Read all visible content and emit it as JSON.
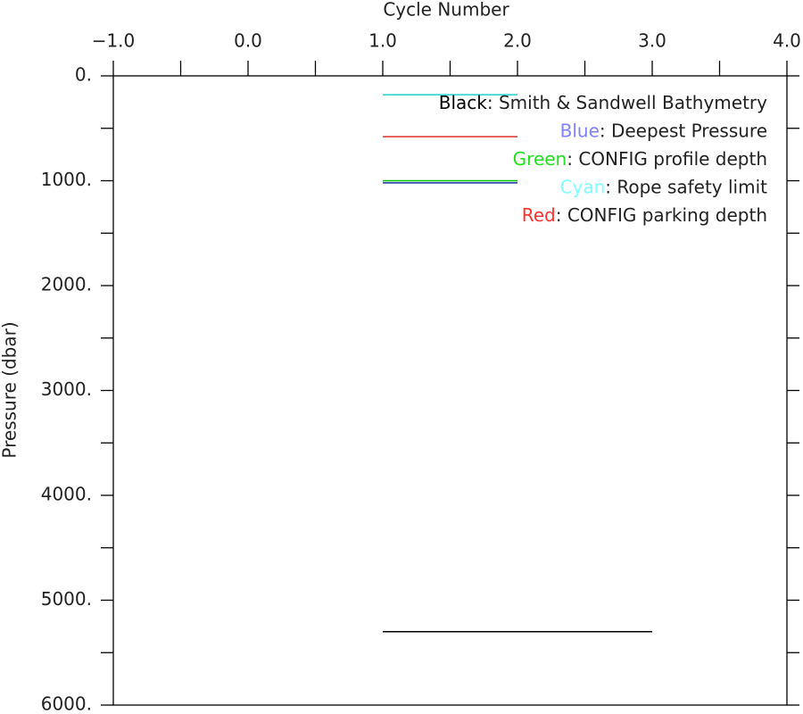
{
  "chart_data": {
    "type": "line",
    "x_label": "Cycle Number",
    "y_label": "Pressure (dbar)",
    "xlim": [
      -1,
      4
    ],
    "xticks": [
      {
        "value": -1,
        "label": "−1.0"
      },
      {
        "value": 0,
        "label": "0.0"
      },
      {
        "value": 1,
        "label": "1.0"
      },
      {
        "value": 2,
        "label": "2.0"
      },
      {
        "value": 3,
        "label": "3.0"
      },
      {
        "value": 4,
        "label": "4.0"
      }
    ],
    "xminorticks": [
      -0.5,
      0.5,
      1.5,
      2.5,
      3.5
    ],
    "ylim": [
      0,
      6000
    ],
    "y_inverted": true,
    "yticks": [
      {
        "value": 0,
        "label": "0."
      },
      {
        "value": 1000,
        "label": "1000."
      },
      {
        "value": 2000,
        "label": "2000."
      },
      {
        "value": 3000,
        "label": "3000."
      },
      {
        "value": 4000,
        "label": "4000."
      },
      {
        "value": 5000,
        "label": "5000."
      },
      {
        "value": 6000,
        "label": "6000."
      }
    ],
    "yminorticks": [
      500,
      1500,
      2500,
      3500,
      4500,
      5500
    ],
    "series": [
      {
        "name": "Black",
        "description": ": Smith & Sandwell Bathymetry",
        "color": "#000000",
        "text_color": "#000000",
        "x": [
          1,
          3
        ],
        "values": [
          5300,
          5300
        ]
      },
      {
        "name": "Blue",
        "description": ": Deepest Pressure",
        "color": "#1030a0",
        "text_color": "#8080ff",
        "x": [
          1,
          2
        ],
        "values": [
          1020,
          1020
        ]
      },
      {
        "name": "Green",
        "description": ": CONFIG profile depth",
        "color": "#00c000",
        "text_color": "#20e020",
        "x": [
          1,
          2
        ],
        "values": [
          1000,
          1000
        ]
      },
      {
        "name": "Cyan",
        "description": ": Rope safety limit",
        "color": "#20d0d0",
        "text_color": "#80ffff",
        "x": [
          1,
          2
        ],
        "values": [
          180,
          180
        ]
      },
      {
        "name": "Red",
        "description": ": CONFIG parking depth",
        "color": "#e03030",
        "text_color": "#ff3030",
        "x": [
          1,
          2
        ],
        "values": [
          580,
          580
        ]
      }
    ]
  }
}
